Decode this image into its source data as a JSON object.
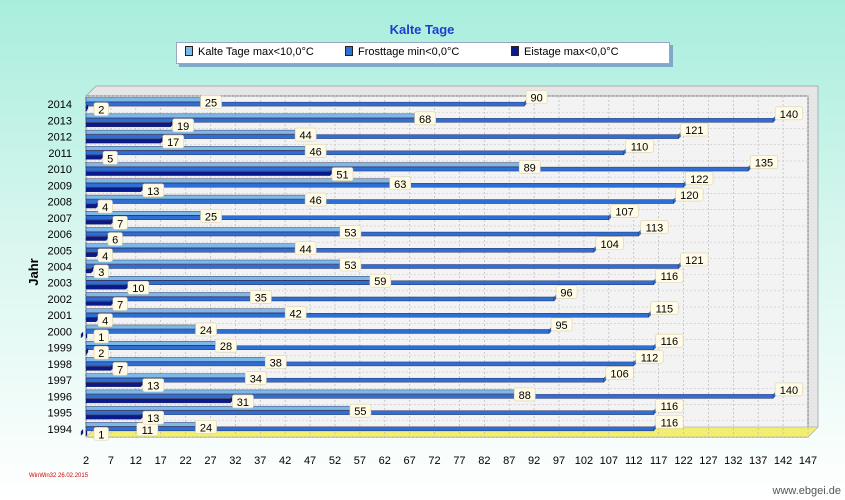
{
  "chart_data": {
    "type": "bar",
    "orientation": "horizontal",
    "title": "Kalte Tage",
    "ylabel": "Jahr",
    "categories": [
      "1994",
      "1995",
      "1996",
      "1997",
      "1998",
      "1999",
      "2000",
      "2001",
      "2002",
      "2003",
      "2004",
      "2005",
      "2006",
      "2007",
      "2008",
      "2009",
      "2010",
      "2011",
      "2012",
      "2013",
      "2014"
    ],
    "series": [
      {
        "name": "Kalte Tage max<10,0°C",
        "color": "#7eb8e8",
        "values": [
          24,
          55,
          88,
          34,
          38,
          28,
          24,
          42,
          35,
          59,
          53,
          44,
          53,
          25,
          46,
          63,
          89,
          46,
          44,
          68,
          25
        ]
      },
      {
        "name": "Frosttage min<0,0°C",
        "color": "#2f6ed2",
        "values": [
          116,
          116,
          140,
          106,
          112,
          116,
          95,
          115,
          96,
          116,
          121,
          104,
          113,
          107,
          120,
          122,
          135,
          110,
          121,
          140,
          90
        ]
      },
      {
        "name": "Eistage max<0,0°C",
        "color": "#0a1a8a",
        "values": [
          1,
          13,
          31,
          13,
          7,
          2,
          1,
          4,
          7,
          10,
          3,
          4,
          6,
          7,
          4,
          13,
          51,
          5,
          17,
          19,
          2
        ]
      }
    ],
    "extra_labels": {
      "1994": "11"
    },
    "xlim": [
      2,
      147
    ],
    "xticks": [
      "2",
      "7",
      "12",
      "17",
      "22",
      "27",
      "32",
      "37",
      "42",
      "47",
      "52",
      "57",
      "62",
      "67",
      "72",
      "77",
      "82",
      "87",
      "92",
      "97",
      "102",
      "107",
      "112",
      "117",
      "122",
      "127",
      "132",
      "137",
      "142",
      "147"
    ],
    "grid": true,
    "legend_position": "top"
  },
  "footer": {
    "left": "WinWin32  26.02.2015",
    "right": "www.ebgei.de"
  }
}
